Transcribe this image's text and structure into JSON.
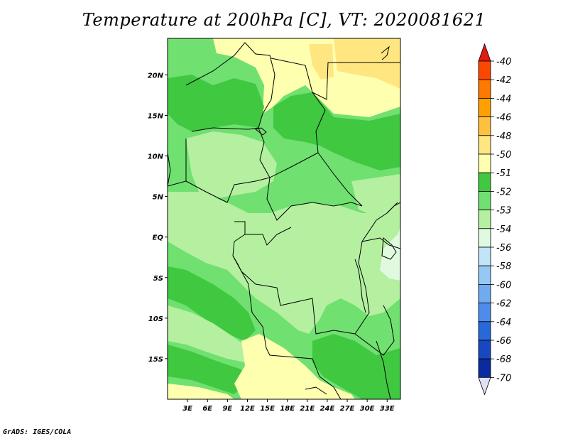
{
  "title": "Temperature at 200hPa [C], VT: 2020081621",
  "credit": "GrADS: IGES/COLA",
  "map": {
    "lat_labels": [
      "20N",
      "15N",
      "10N",
      "5N",
      "EQ",
      "5S",
      "10S",
      "15S"
    ],
    "lat_values": [
      20,
      15,
      10,
      5,
      0,
      -5,
      -10,
      -15
    ],
    "lon_labels": [
      "3E",
      "6E",
      "9E",
      "12E",
      "15E",
      "18E",
      "21E",
      "24E",
      "27E",
      "30E",
      "33E"
    ],
    "lon_values": [
      3,
      6,
      9,
      12,
      15,
      18,
      21,
      24,
      27,
      30,
      33
    ],
    "lon_range": [
      0,
      35
    ],
    "lat_range": [
      -20,
      24.5
    ]
  },
  "colorbar": {
    "labels": [
      "-40",
      "-42",
      "-44",
      "-46",
      "-48",
      "-50",
      "-51",
      "-52",
      "-53",
      "-54",
      "-56",
      "-58",
      "-60",
      "-62",
      "-64",
      "-66",
      "-68",
      "-70"
    ],
    "colors": [
      "#f02800",
      "#fa4800",
      "#ff7800",
      "#ffa000",
      "#ffc040",
      "#ffe680",
      "#ffffb0",
      "#40c840",
      "#70e070",
      "#b4f0a0",
      "#e0fae0",
      "#c0e4f8",
      "#96c8f5",
      "#70aaf0",
      "#4e8ceb",
      "#2868d8",
      "#1848c0",
      "#0a2aa0",
      "#041268"
    ],
    "top_arrow_color": "#e21a10",
    "bottom_arrow_color": "#e0e0f8"
  },
  "field_colors": {
    "c53": "#70e070",
    "c52": "#40c840",
    "c54": "#b4f0a0",
    "c51": "#ffffb0",
    "c50": "#ffe680",
    "c55": "#e0fae0"
  }
}
